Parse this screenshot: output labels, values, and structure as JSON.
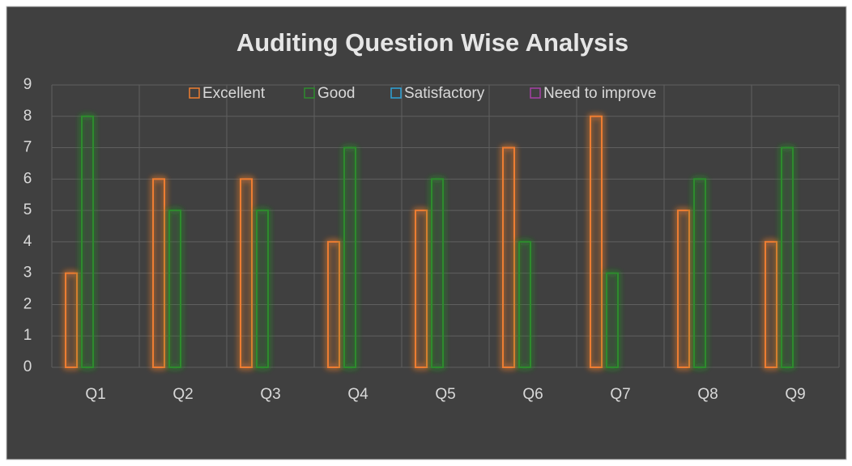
{
  "chart_data": {
    "type": "bar",
    "title": "Auditing Question Wise Analysis",
    "categories": [
      "Q1",
      "Q2",
      "Q3",
      "Q4",
      "Q5",
      "Q6",
      "Q7",
      "Q8",
      "Q9"
    ],
    "series": [
      {
        "name": "Excellent",
        "color": "#ed7d31",
        "values": [
          3,
          6,
          6,
          4,
          5,
          7,
          8,
          5,
          4
        ]
      },
      {
        "name": "Good",
        "color": "#2e8b2e",
        "values": [
          8,
          5,
          5,
          7,
          6,
          4,
          3,
          6,
          7
        ]
      },
      {
        "name": "Satisfactory",
        "color": "#2ea3d8",
        "values": [
          0,
          0,
          0,
          0,
          0,
          0,
          0,
          0,
          0
        ]
      },
      {
        "name": "Need to improve",
        "color": "#a540a5",
        "values": [
          0,
          0,
          0,
          0,
          0,
          0,
          0,
          0,
          0
        ]
      }
    ],
    "ylim": [
      0,
      9
    ],
    "yticks": [
      0,
      1,
      2,
      3,
      4,
      5,
      6,
      7,
      8,
      9
    ],
    "grid": true,
    "legend": "top"
  }
}
